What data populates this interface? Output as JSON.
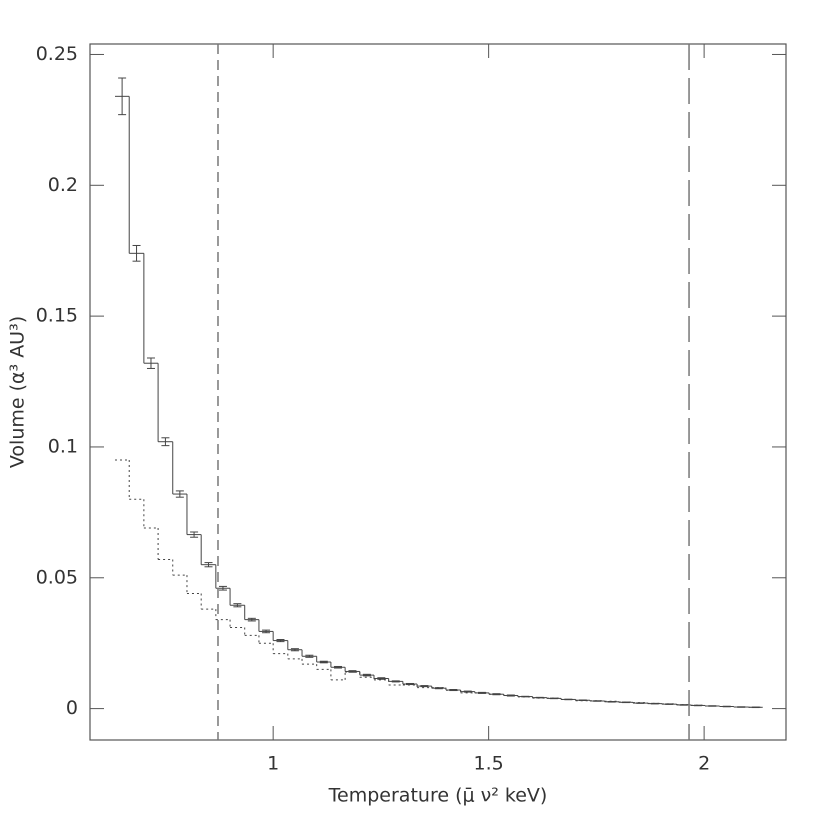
{
  "chart_data": {
    "type": "step-histogram",
    "xlabel": "Temperature (μ̄ ν² keV)",
    "ylabel": "Volume (α³ AU³)",
    "bins": [
      0.633,
      0.666,
      0.7,
      0.733,
      0.767,
      0.8,
      0.833,
      0.867,
      0.9,
      0.934,
      0.967,
      1.0,
      1.034,
      1.067,
      1.101,
      1.134,
      1.167,
      1.201,
      1.234,
      1.268,
      1.301,
      1.334,
      1.368,
      1.401,
      1.435,
      1.468,
      1.501,
      1.535,
      1.568,
      1.602,
      1.635,
      1.668,
      1.702,
      1.735,
      1.769,
      1.802,
      1.835,
      1.869,
      1.902,
      1.936,
      1.969,
      2.002,
      2.036,
      2.069,
      2.103,
      2.136
    ],
    "series": [
      {
        "color": "#444444",
        "dash": "solid",
        "values": [
          0.234,
          0.174,
          0.132,
          0.102,
          0.082,
          0.0665,
          0.055,
          0.046,
          0.0395,
          0.034,
          0.0295,
          0.026,
          0.0225,
          0.02,
          0.0178,
          0.0158,
          0.0142,
          0.0128,
          0.0115,
          0.0104,
          0.0094,
          0.0086,
          0.0078,
          0.0071,
          0.0065,
          0.006,
          0.0055,
          0.005,
          0.0046,
          0.0042,
          0.0039,
          0.0035,
          0.0032,
          0.0029,
          0.0026,
          0.0024,
          0.0021,
          0.0019,
          0.0017,
          0.0014,
          0.0012,
          0.001,
          0.0008,
          0.0006,
          0.0005
        ],
        "errors": [
          0.007,
          0.003,
          0.002,
          0.0015,
          0.0012,
          0.001,
          0.0008,
          0.0007,
          0.0006,
          0.0005,
          0.0005,
          0.0004,
          0.0004,
          0.0004,
          0.0003,
          0.0003,
          0.0003,
          0.0003,
          0.0003,
          0.0002,
          0.0002,
          0.0002,
          0.0002,
          0.0002,
          0.0002,
          0.0002,
          0.0002,
          0.0002,
          0.0001,
          0.0001,
          0.0001,
          0.0001,
          0.0001,
          0.0001,
          0.0001,
          0.0001,
          0.0001,
          0.0001,
          0.0001,
          0.0001,
          0.0001,
          0.0001,
          0.0001,
          0.0001,
          0.0001
        ]
      },
      {
        "color": "#444444",
        "dash": "dotted",
        "values": [
          0.095,
          0.08,
          0.069,
          0.057,
          0.051,
          0.044,
          0.038,
          0.034,
          0.031,
          0.028,
          0.025,
          0.021,
          0.019,
          0.017,
          0.015,
          0.011,
          0.014,
          0.012,
          0.011,
          0.009,
          0.009,
          0.008,
          0.008,
          0.007,
          0.006,
          0.006,
          0.0055,
          0.005,
          0.0045,
          0.004,
          0.004,
          0.0035,
          0.003,
          0.003,
          0.0028,
          0.0025,
          0.0023,
          0.002,
          0.0018,
          0.0015,
          0.0013,
          0.001,
          0.0008,
          0.0006,
          0.0005
        ]
      }
    ],
    "vlines": [
      {
        "x": 0.872,
        "dash": "short"
      },
      {
        "x": 1.965,
        "dash": "long"
      }
    ],
    "xlim": [
      0.575,
      2.19
    ],
    "xticks": [
      1,
      1.5,
      2
    ],
    "ylim": [
      -0.012,
      0.254
    ],
    "yticks": [
      0,
      0.05,
      0.1,
      0.15,
      0.2,
      0.25
    ]
  }
}
